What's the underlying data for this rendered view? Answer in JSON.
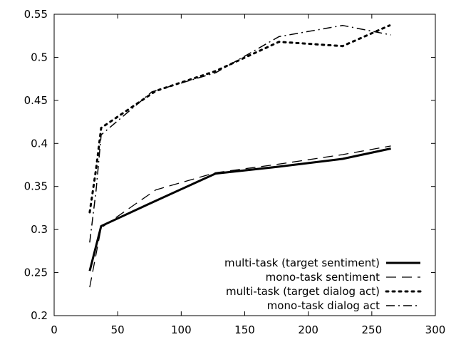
{
  "chart_data": {
    "type": "line",
    "xlim": [
      0,
      300
    ],
    "ylim": [
      0.2,
      0.55
    ],
    "x_ticks": [
      0,
      50,
      100,
      150,
      200,
      250,
      300
    ],
    "y_ticks": [
      0.2,
      0.25,
      0.3,
      0.35,
      0.4,
      0.45,
      0.5,
      0.55
    ],
    "x_tick_labels": [
      "0",
      "50",
      "100",
      "150",
      "200",
      "250",
      "300"
    ],
    "y_tick_labels": [
      "0.2",
      "0.25",
      "0.3",
      "0.35",
      "0.4",
      "0.45",
      "0.5",
      "0.55"
    ],
    "grid": false,
    "legend_position": "bottom-right",
    "series": [
      {
        "name": "multi-task (target sentiment)",
        "style": "solid-bold",
        "color": "#000000",
        "points": [
          [
            28,
            0.252
          ],
          [
            37,
            0.304
          ],
          [
            75,
            0.33
          ],
          [
            127,
            0.365
          ],
          [
            177,
            0.373
          ],
          [
            227,
            0.382
          ],
          [
            265,
            0.394
          ]
        ]
      },
      {
        "name": "mono-task sentiment",
        "style": "dashed",
        "color": "#000000",
        "points": [
          [
            28,
            0.233
          ],
          [
            37,
            0.302
          ],
          [
            80,
            0.346
          ],
          [
            127,
            0.366
          ],
          [
            177,
            0.376
          ],
          [
            227,
            0.387
          ],
          [
            265,
            0.397
          ]
        ]
      },
      {
        "name": "multi-task (target dialog act)",
        "style": "dotted",
        "color": "#000000",
        "points": [
          [
            28,
            0.32
          ],
          [
            33,
            0.37
          ],
          [
            37,
            0.418
          ],
          [
            80,
            0.461
          ],
          [
            127,
            0.484
          ],
          [
            177,
            0.518
          ],
          [
            227,
            0.513
          ],
          [
            264,
            0.537
          ]
        ]
      },
      {
        "name": "mono-task dialog act",
        "style": "dash-dot",
        "color": "#000000",
        "points": [
          [
            28,
            0.285
          ],
          [
            33,
            0.345
          ],
          [
            37,
            0.41
          ],
          [
            77,
            0.46
          ],
          [
            127,
            0.482
          ],
          [
            177,
            0.524
          ],
          [
            227,
            0.537
          ],
          [
            265,
            0.526
          ]
        ]
      }
    ]
  }
}
